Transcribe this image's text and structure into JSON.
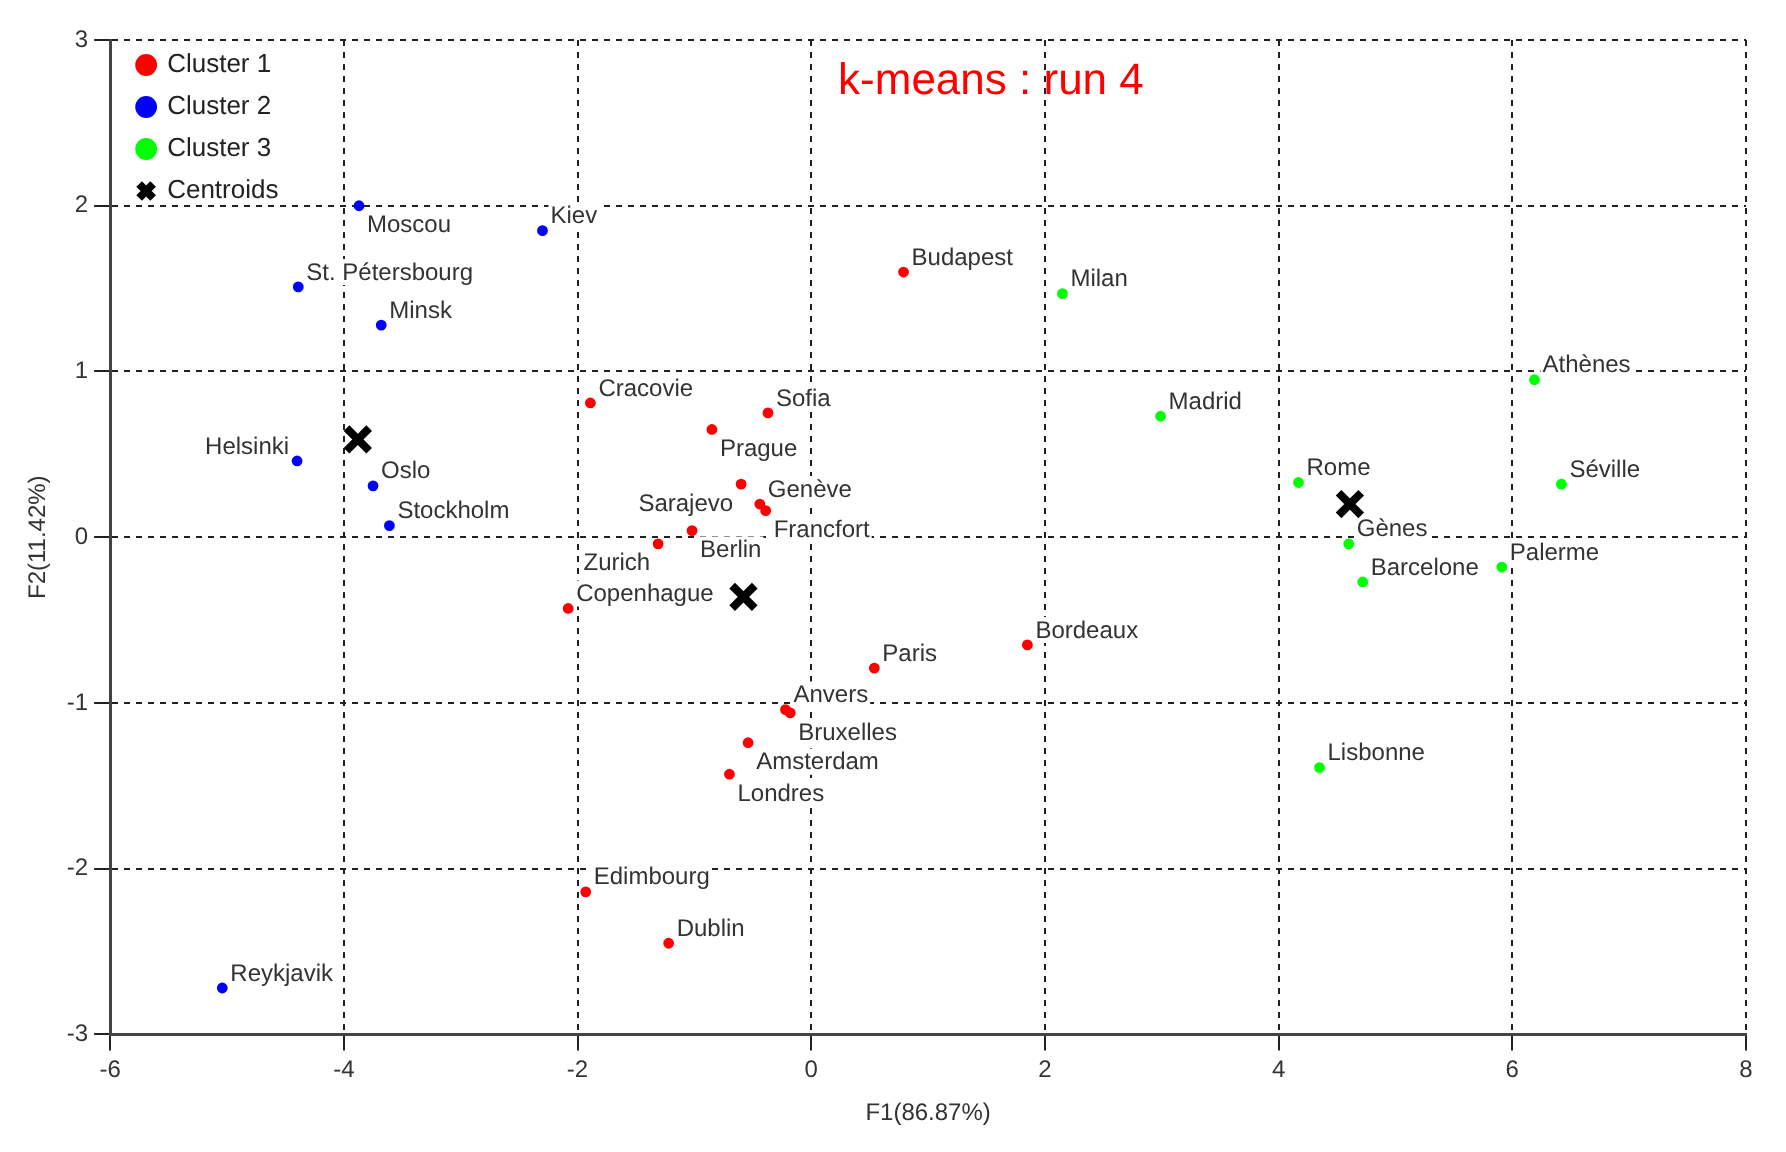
{
  "chart_data": {
    "type": "scatter",
    "title": "k-means : run 4",
    "xlabel": "F1(86.87%)",
    "ylabel": "F2(11.42%)",
    "xlim": [
      -6,
      8
    ],
    "xticks": [
      -6,
      -4,
      -2,
      0,
      2,
      4,
      6,
      8
    ],
    "ylim": [
      -3,
      3
    ],
    "yticks": [
      -3,
      -2,
      -1,
      0,
      1,
      2,
      3
    ],
    "grid": true,
    "legend": "top left",
    "series": [
      {
        "name": "Cluster 1",
        "color": "#ff0000",
        "marker": "circle",
        "x": [
          0.79,
          -1.89,
          -0.85,
          -0.37,
          -0.6,
          -0.44,
          -0.39,
          -1.02,
          -1.31,
          -2.08,
          0.54,
          1.85,
          -0.22,
          -0.18,
          -0.54,
          -0.7,
          -1.93,
          -1.22
        ],
        "values": [
          1.6,
          0.81,
          0.65,
          0.75,
          0.32,
          0.2,
          0.16,
          0.04,
          -0.04,
          -0.43,
          -0.79,
          -0.65,
          -1.04,
          -1.06,
          -1.24,
          -1.43,
          -2.14,
          -2.45
        ]
      },
      {
        "name": "Cluster 2",
        "color": "#0000ff",
        "marker": "circle",
        "x": [
          -3.87,
          -2.3,
          -4.39,
          -3.68,
          -4.4,
          -3.75,
          -3.61,
          -5.04
        ],
        "values": [
          2.0,
          1.85,
          1.51,
          1.28,
          0.46,
          0.31,
          0.07,
          -2.72
        ]
      },
      {
        "name": "Cluster 3",
        "color": "#00ff00",
        "marker": "circle",
        "x": [
          2.15,
          2.99,
          4.17,
          4.6,
          4.72,
          5.91,
          6.19,
          6.42,
          4.35
        ],
        "values": [
          1.47,
          0.73,
          0.33,
          -0.04,
          -0.27,
          -0.18,
          0.95,
          0.32,
          -1.39
        ]
      },
      {
        "name": "Centroids",
        "color": "#000000",
        "marker": "cross",
        "x": [
          -3.88,
          -0.58,
          4.61
        ],
        "values": [
          0.59,
          -0.36,
          0.2
        ]
      }
    ],
    "annotations": [
      {
        "text": "Budapest",
        "x": 0.79,
        "y": 1.6
      },
      {
        "text": "Cracovie",
        "x": -1.89,
        "y": 0.81
      },
      {
        "text": "Prague",
        "x": -0.85,
        "y": 0.65
      },
      {
        "text": "Sofia",
        "x": -0.37,
        "y": 0.75
      },
      {
        "text": "Sarajevo",
        "x": -0.6,
        "y": 0.32
      },
      {
        "text": "Genève",
        "x": -0.44,
        "y": 0.2
      },
      {
        "text": "Francfort",
        "x": -0.39,
        "y": 0.16
      },
      {
        "text": "Berlin",
        "x": -1.02,
        "y": 0.04
      },
      {
        "text": "Zurich",
        "x": -1.31,
        "y": -0.04
      },
      {
        "text": "Copenhague",
        "x": -2.08,
        "y": -0.43
      },
      {
        "text": "Paris",
        "x": 0.54,
        "y": -0.79
      },
      {
        "text": "Bordeaux",
        "x": 1.85,
        "y": -0.65
      },
      {
        "text": "Anvers",
        "x": -0.22,
        "y": -1.04
      },
      {
        "text": "Bruxelles",
        "x": -0.18,
        "y": -1.06
      },
      {
        "text": "Amsterdam",
        "x": -0.54,
        "y": -1.24
      },
      {
        "text": "Londres",
        "x": -0.7,
        "y": -1.43
      },
      {
        "text": "Edimbourg",
        "x": -1.93,
        "y": -2.14
      },
      {
        "text": "Dublin",
        "x": -1.22,
        "y": -2.45
      },
      {
        "text": "Moscou",
        "x": -3.87,
        "y": 2.0
      },
      {
        "text": "Kiev",
        "x": -2.3,
        "y": 1.85
      },
      {
        "text": "St. Pétersbourg",
        "x": -4.39,
        "y": 1.51
      },
      {
        "text": "Minsk",
        "x": -3.68,
        "y": 1.28
      },
      {
        "text": "Helsinki",
        "x": -4.4,
        "y": 0.46
      },
      {
        "text": "Oslo",
        "x": -3.75,
        "y": 0.31
      },
      {
        "text": "Stockholm",
        "x": -3.61,
        "y": 0.07
      },
      {
        "text": "Reykjavik",
        "x": -5.04,
        "y": -2.72
      },
      {
        "text": "Milan",
        "x": 2.15,
        "y": 1.47
      },
      {
        "text": "Madrid",
        "x": 2.99,
        "y": 0.73
      },
      {
        "text": "Rome",
        "x": 4.17,
        "y": 0.33
      },
      {
        "text": "Gènes",
        "x": 4.6,
        "y": -0.04
      },
      {
        "text": "Barcelone",
        "x": 4.72,
        "y": -0.27
      },
      {
        "text": "Palerme",
        "x": 5.91,
        "y": -0.18
      },
      {
        "text": "Athènes",
        "x": 6.19,
        "y": 0.95
      },
      {
        "text": "Séville",
        "x": 6.42,
        "y": 0.32
      },
      {
        "text": "Lisbonne",
        "x": 4.35,
        "y": -1.39
      }
    ]
  }
}
